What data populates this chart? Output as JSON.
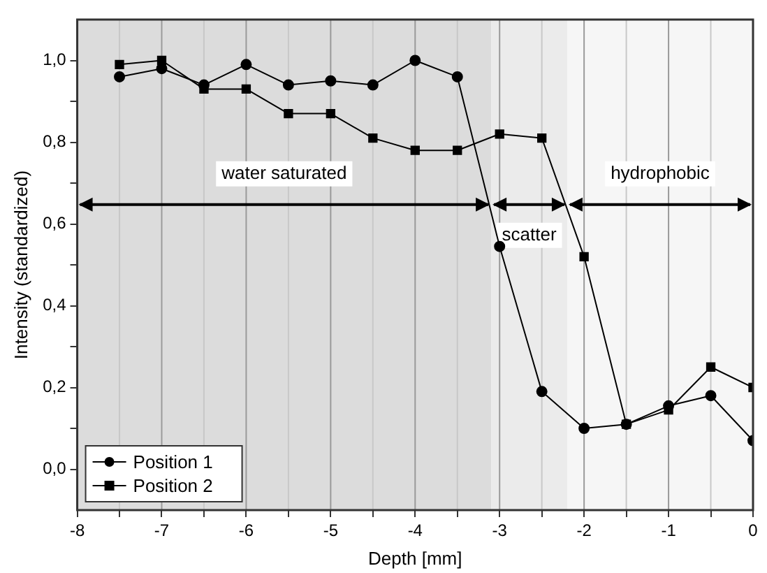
{
  "chart_data": {
    "type": "line",
    "xlabel": "Depth [mm]",
    "ylabel": "Intensity (standardized)",
    "xlim": [
      -8,
      0
    ],
    "xticks": [
      -8,
      {
        "value": -7.5,
        "label": null
      },
      -7,
      {
        "value": -6.5,
        "label": null
      },
      -6,
      {
        "value": -5.5,
        "label": null
      },
      -5,
      {
        "value": -4.5,
        "label": null
      },
      -4,
      {
        "value": -3.5,
        "label": null
      },
      -3,
      {
        "value": -2.5,
        "label": null
      },
      -2,
      {
        "value": -1.5,
        "label": null
      },
      -1,
      {
        "value": -0.5,
        "label": null
      },
      0
    ],
    "ylim": [
      -0.1,
      1.1
    ],
    "yticks": [
      {
        "value": 0,
        "label": "0,0"
      },
      {
        "value": 0.1,
        "label": null
      },
      {
        "value": 0.2,
        "label": "0,2"
      },
      {
        "value": 0.3,
        "label": null
      },
      {
        "value": 0.4,
        "label": "0,4"
      },
      {
        "value": 0.5,
        "label": null
      },
      {
        "value": 0.6,
        "label": "0,6"
      },
      {
        "value": 0.7,
        "label": null
      },
      {
        "value": 0.8,
        "label": "0,8"
      },
      {
        "value": 0.9,
        "label": null
      },
      {
        "value": 1.0,
        "label": "1,0"
      }
    ],
    "x": [
      -7.5,
      -7,
      -6.5,
      -6,
      -5.5,
      -5,
      -4.5,
      -4,
      -3.5,
      -3,
      -2.5,
      -2,
      -1.5,
      -1,
      -0.5,
      0
    ],
    "series": [
      {
        "name": "Position 1",
        "color": "#000000",
        "marker": "circle",
        "values": [
          0.96,
          0.98,
          0.94,
          0.99,
          0.94,
          0.95,
          0.94,
          1.0,
          0.96,
          0.545,
          0.19,
          0.1,
          0.11,
          0.155,
          0.18,
          0.07
        ]
      },
      {
        "name": "Position 2",
        "color": "#000000",
        "marker": "square",
        "values": [
          0.99,
          1.0,
          0.93,
          0.93,
          0.87,
          0.87,
          0.81,
          0.78,
          0.78,
          0.82,
          0.81,
          0.52,
          0.11,
          0.145,
          0.25,
          0.2
        ]
      }
    ],
    "bands": [
      {
        "axis": "x",
        "from": -8,
        "to": -3.1,
        "label": "water saturated",
        "color": "#dcdcdc"
      },
      {
        "axis": "x",
        "from": -3.1,
        "to": -2.2,
        "label": "scatter",
        "color": "#ebebeb"
      },
      {
        "axis": "x",
        "from": -2.2,
        "to": 0,
        "label": "hydrophobic",
        "color": "#f6f6f6"
      }
    ],
    "grid": "x",
    "legend": "bottom left"
  }
}
